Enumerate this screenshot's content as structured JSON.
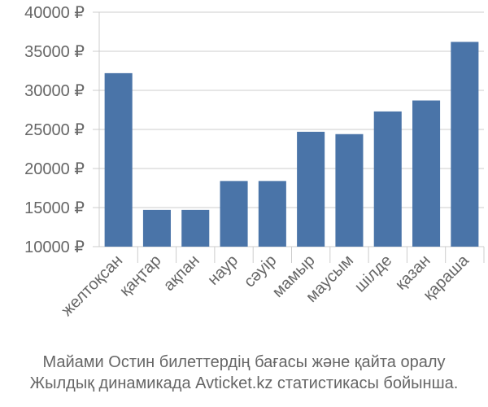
{
  "chart_data": {
    "type": "bar",
    "categories": [
      "желтоқсан",
      "қаңтар",
      "ақпан",
      "наур",
      "сәуір",
      "мамыр",
      "маусым",
      "шілде",
      "қазан",
      "қараша"
    ],
    "values": [
      32200,
      14700,
      14700,
      18400,
      18400,
      24700,
      24400,
      27300,
      28700,
      36200
    ],
    "ylim": [
      10000,
      40000
    ],
    "yticks": [
      10000,
      15000,
      20000,
      25000,
      30000,
      35000,
      40000
    ],
    "ytick_suffix": " ₽",
    "grid": true,
    "bar_color": "#4a74a8",
    "caption": [
      "Майами Остин билеттердің бағасы және қайта оралу",
      "Жылдық динамикада Avticket.kz статистикасы бойынша."
    ]
  }
}
